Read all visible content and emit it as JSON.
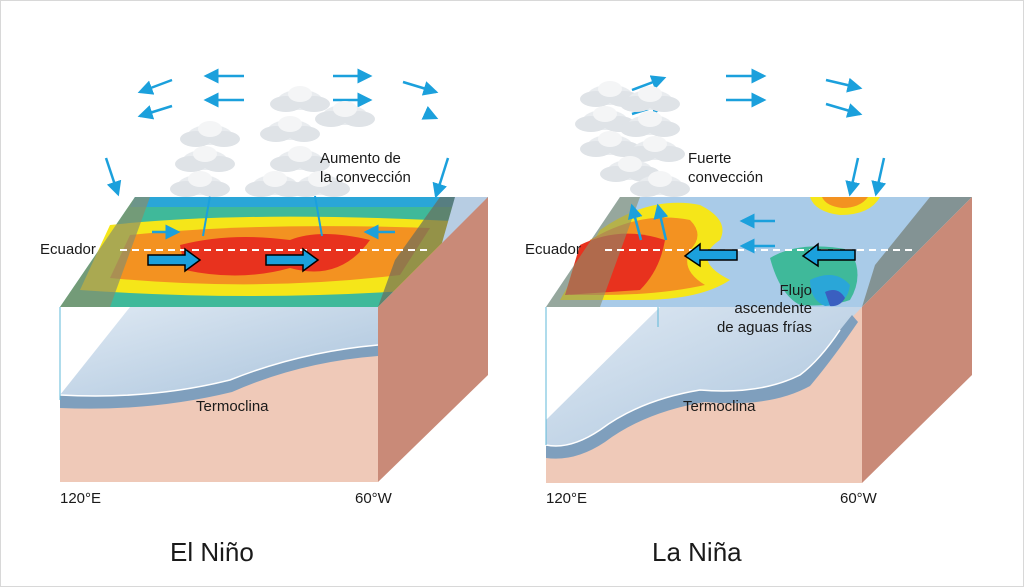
{
  "el_nino": {
    "title": "El Niño",
    "convection_label_1": "Aumento de",
    "convection_label_2": "la convección",
    "equator_label": "Ecuador",
    "thermocline_label": "Termoclina",
    "west_longitude": "120°E",
    "east_longitude": "60°W"
  },
  "la_nina": {
    "title": "La Niña",
    "convection_label_1": "Fuerte",
    "convection_label_2": "convección",
    "equator_label": "Ecuador",
    "upwelling_label_1": "Flujo",
    "upwelling_label_2": "ascendente",
    "upwelling_label_3": "de aguas frías",
    "thermocline_label": "Termoclina",
    "west_longitude": "120°E",
    "east_longitude": "60°W"
  },
  "colors": {
    "wind_arrow": "#1ba0dc",
    "warm_red": "#e8321e",
    "warm_orange": "#f39221",
    "warm_yellow": "#f5e619",
    "cool_green": "#3fb99a",
    "ocean_light": "#a9cbe8",
    "block_front": "#efc9b8",
    "block_side": "#c98a78",
    "thermocline": "#7f9fbd"
  }
}
